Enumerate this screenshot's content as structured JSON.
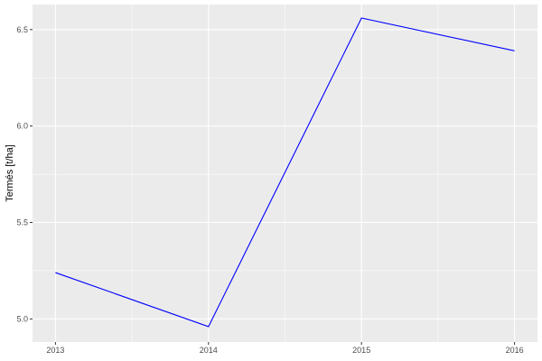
{
  "chart_data": {
    "type": "line",
    "title": "",
    "xlabel": "",
    "ylabel": "Termés [t/ha]",
    "x": [
      2013,
      2014,
      2015,
      2016
    ],
    "series": [
      {
        "values": [
          5.24,
          4.96,
          6.56,
          6.39
        ],
        "color": "#0000ff"
      }
    ],
    "xlim": [
      2012.85,
      2016.15
    ],
    "ylim": [
      4.88,
      6.63
    ],
    "xticks": [
      "2013",
      "2014",
      "2015",
      "2016"
    ],
    "yticks": [
      "5.0",
      "5.5",
      "6.0",
      "6.5"
    ],
    "grid": true,
    "legend": "none",
    "panel_background": "#ebebeb",
    "grid_color": "#ffffff"
  }
}
